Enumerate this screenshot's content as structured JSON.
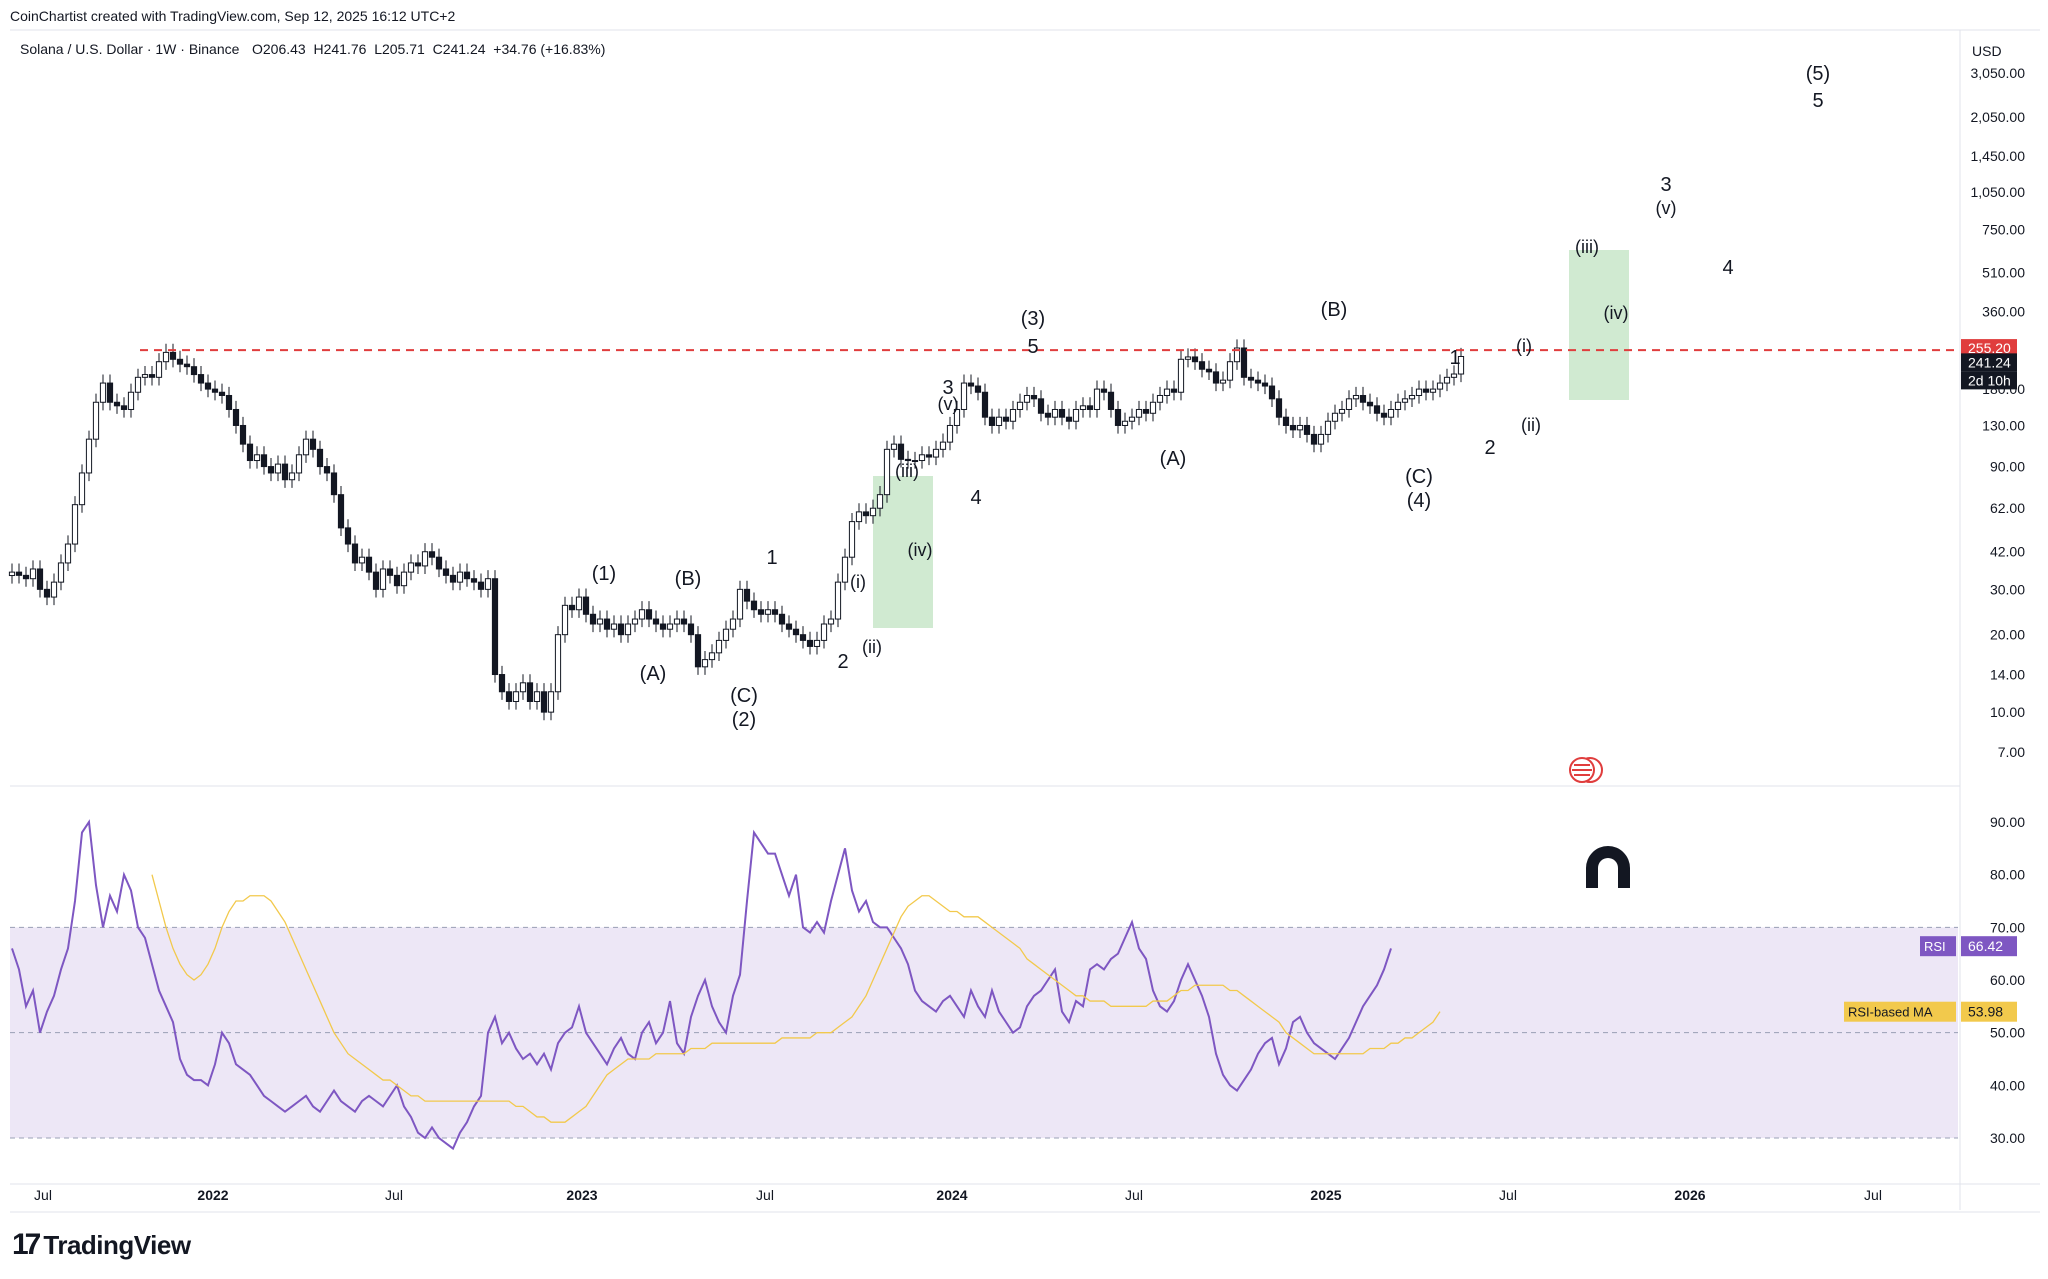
{
  "header": {
    "credit": "CoinChartist created with TradingView.com, Sep 12, 2025 16:12 UTC+2",
    "symbol": "Solana / U.S. Dollar · 1W · Binance",
    "ohlc": "O206.43  H241.76  L205.71  C241.24  +34.76 (+16.83%)"
  },
  "brand": {
    "logo_text": "TradingView"
  },
  "colors": {
    "up_candle": "#ffffff",
    "down_candle": "#131722",
    "resistance": "#e03d3d",
    "rsi_line": "#7e57c2",
    "rsi_ma": "#f2c94c",
    "rsi_band": "#ede7f6",
    "green_zone": "#c8e6c9"
  },
  "chart_data": [
    {
      "type": "candlestick",
      "title": "Solana / U.S. Dollar · 1W · Binance",
      "price_scale": "log",
      "currency_label": "USD",
      "y_ticks": [
        "3,050.00",
        "2,050.00",
        "1,450.00",
        "1,050.00",
        "750.00",
        "510.00",
        "360.00",
        "180.00",
        "130.00",
        "90.00",
        "62.00",
        "42.00",
        "30.00",
        "20.00",
        "14.00",
        "10.00",
        "7.00"
      ],
      "x_ticks": [
        "Jul",
        "2022",
        "Jul",
        "2023",
        "Jul",
        "2024",
        "Jul",
        "2025",
        "Jul",
        "2026",
        "Jul"
      ],
      "price_badges": [
        {
          "text": "255.20",
          "kind": "resistance"
        },
        {
          "text": "241.24",
          "kind": "last"
        },
        {
          "text": "2d 10h",
          "kind": "countdown"
        }
      ],
      "resistance_level": 255.2,
      "closes": [
        35,
        34,
        33,
        36,
        30,
        28,
        32,
        38,
        45,
        64,
        85,
        115,
        160,
        190,
        160,
        155,
        150,
        175,
        200,
        205,
        200,
        230,
        250,
        235,
        225,
        220,
        205,
        190,
        180,
        175,
        170,
        150,
        130,
        110,
        95,
        100,
        90,
        85,
        92,
        80,
        85,
        100,
        115,
        105,
        90,
        85,
        70,
        52,
        45,
        38,
        40,
        35,
        30,
        36,
        34,
        31,
        35,
        38,
        37,
        42,
        40,
        36,
        34,
        32,
        35,
        33,
        32,
        30,
        33,
        14,
        12,
        11,
        12,
        13,
        11,
        12,
        10,
        12,
        20,
        26,
        25,
        28,
        24,
        22,
        23,
        21,
        22,
        20,
        22,
        23,
        25,
        23,
        22,
        21,
        22,
        23,
        22,
        20,
        15,
        16,
        17,
        19,
        21,
        23,
        30,
        27,
        25,
        24,
        25,
        24,
        22,
        21,
        20,
        19,
        18,
        19,
        22,
        23,
        32,
        40,
        55,
        60,
        58,
        62,
        70,
        105,
        110,
        96,
        95,
        95,
        100,
        98,
        105,
        112,
        130,
        150,
        190,
        185,
        175,
        140,
        130,
        140,
        135,
        150,
        160,
        170,
        165,
        145,
        140,
        150,
        140,
        135,
        150,
        155,
        150,
        180,
        175,
        150,
        130,
        135,
        140,
        150,
        145,
        160,
        170,
        180,
        175,
        235,
        240,
        230,
        215,
        210,
        190,
        195,
        230,
        260,
        200,
        195,
        190,
        185,
        165,
        140,
        130,
        125,
        130,
        120,
        110,
        120,
        135,
        145,
        150,
        165,
        170,
        160,
        155,
        145,
        140,
        150,
        160,
        165,
        170,
        180,
        175,
        180,
        190,
        200,
        206,
        241
      ],
      "wave_labels": [
        "(1)",
        "(A)",
        "(B)",
        "(C)",
        "(2)",
        "1",
        "2",
        "(i)",
        "(ii)",
        "(iii)",
        "(iv)",
        "3",
        "(v)",
        "4",
        "(3)",
        "5",
        "(A)",
        "(B)",
        "(C)",
        "(4)",
        "1",
        "2",
        "(i)",
        "(ii)",
        "(iii)",
        "(iv)",
        "3",
        "(v)",
        "4",
        "(5)",
        "5"
      ]
    },
    {
      "type": "line",
      "title": "RSI",
      "y_ticks": [
        "90.00",
        "80.00",
        "70.00",
        "60.00",
        "50.00",
        "40.00",
        "30.00"
      ],
      "band": [
        30,
        70
      ],
      "midline": 50,
      "series": [
        {
          "name": "RSI",
          "last": "66.42",
          "values": [
            66,
            62,
            55,
            58,
            50,
            54,
            57,
            62,
            66,
            75,
            88,
            90,
            78,
            70,
            76,
            73,
            80,
            77,
            70,
            68,
            63,
            58,
            55,
            52,
            45,
            42,
            41,
            41,
            40,
            44,
            50,
            48,
            44,
            43,
            42,
            40,
            38,
            37,
            36,
            35,
            36,
            37,
            38,
            36,
            35,
            37,
            39,
            37,
            36,
            35,
            37,
            38,
            37,
            36,
            38,
            40,
            36,
            34,
            31,
            30,
            32,
            30,
            29,
            28,
            31,
            33,
            36,
            38,
            50,
            53,
            48,
            50,
            47,
            45,
            46,
            44,
            46,
            43,
            48,
            50,
            51,
            55,
            50,
            48,
            46,
            44,
            47,
            49,
            46,
            45,
            50,
            52,
            48,
            50,
            56,
            48,
            46,
            53,
            57,
            60,
            55,
            52,
            50,
            57,
            61,
            75,
            88,
            86,
            84,
            84,
            80,
            76,
            80,
            70,
            69,
            71,
            69,
            75,
            80,
            85,
            77,
            73,
            75,
            71,
            70,
            70,
            68,
            66,
            63,
            58,
            56,
            55,
            54,
            56,
            57,
            55,
            53,
            58,
            55,
            53,
            58,
            54,
            52,
            50,
            51,
            55,
            57,
            58,
            60,
            62,
            54,
            52,
            56,
            55,
            62,
            63,
            62,
            64,
            65,
            68,
            71,
            66,
            64,
            58,
            55,
            54,
            56,
            60,
            63,
            60,
            57,
            53,
            46,
            42,
            40,
            39,
            41,
            43,
            46,
            48,
            49,
            44,
            47,
            52,
            53,
            50,
            48,
            47,
            46,
            45,
            47,
            49,
            52,
            55,
            57,
            59,
            62,
            66
          ],
          "color": "#7e57c2"
        },
        {
          "name": "RSI-based MA",
          "last": "53.98",
          "values": [
            80,
            75,
            70,
            66,
            63,
            61,
            60,
            61,
            63,
            66,
            70,
            73,
            75,
            75,
            76,
            76,
            76,
            75,
            73,
            71,
            68,
            65,
            62,
            59,
            56,
            53,
            50,
            48,
            46,
            45,
            44,
            43,
            42,
            41,
            41,
            40,
            39,
            38,
            38,
            37,
            37,
            37,
            37,
            37,
            37,
            37,
            37,
            37,
            37,
            37,
            37,
            37,
            36,
            36,
            35,
            34,
            34,
            33,
            33,
            33,
            34,
            35,
            36,
            38,
            40,
            42,
            43,
            44,
            45,
            45,
            45,
            45,
            46,
            46,
            46,
            46,
            46,
            47,
            47,
            47,
            48,
            48,
            48,
            48,
            48,
            48,
            48,
            48,
            48,
            48,
            49,
            49,
            49,
            49,
            49,
            50,
            50,
            50,
            51,
            52,
            53,
            55,
            57,
            60,
            63,
            66,
            69,
            72,
            74,
            75,
            76,
            76,
            75,
            74,
            73,
            73,
            72,
            72,
            72,
            71,
            70,
            69,
            68,
            67,
            66,
            64,
            63,
            62,
            61,
            60,
            59,
            58,
            57,
            57,
            56,
            56,
            56,
            55,
            55,
            55,
            55,
            55,
            55,
            56,
            56,
            56,
            57,
            58,
            58,
            59,
            59,
            59,
            59,
            59,
            58,
            58,
            57,
            56,
            55,
            54,
            53,
            52,
            50,
            49,
            48,
            47,
            46,
            46,
            46,
            46,
            46,
            46,
            46,
            46,
            47,
            47,
            47,
            48,
            48,
            49,
            49,
            50,
            51,
            52,
            54
          ],
          "color": "#f2c94c"
        }
      ]
    }
  ]
}
